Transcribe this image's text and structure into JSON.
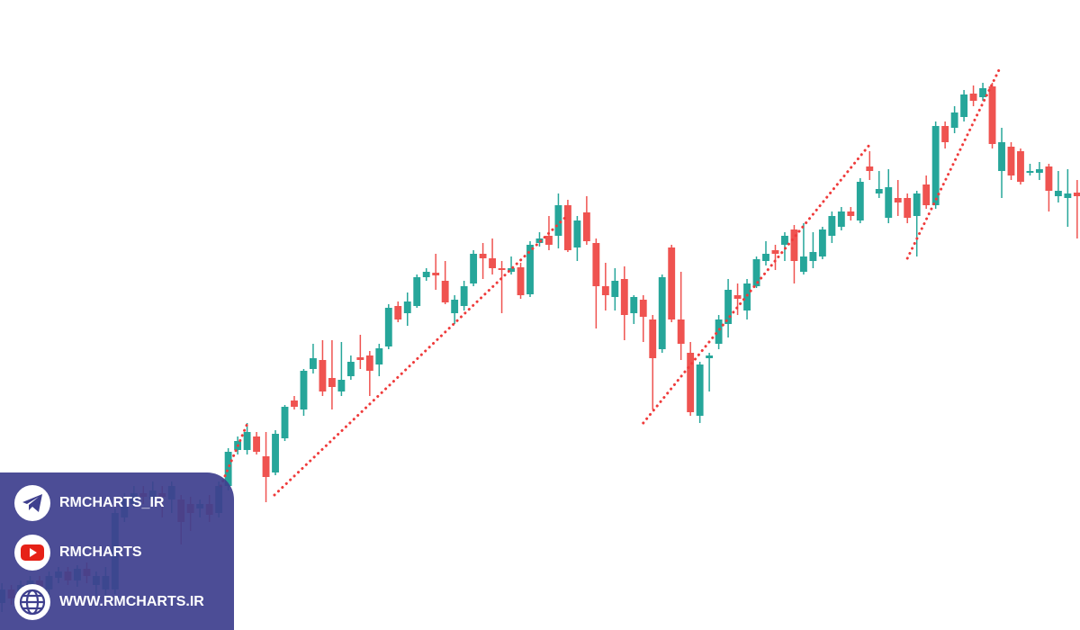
{
  "chart_data": {
    "type": "candlestick",
    "up_color": "#26a69a",
    "down_color": "#ef5350",
    "trend_color": "#ef3b3b",
    "xlim": [
      -0.2,
      114.3
    ],
    "ylim": [
      0,
      700
    ],
    "open": [
      30,
      45,
      32,
      48,
      55,
      45,
      58,
      65,
      55,
      68,
      50,
      45,
      45,
      125,
      140,
      152,
      145,
      152,
      145,
      145,
      140,
      135,
      140,
      130,
      160,
      200,
      200,
      215,
      193,
      175,
      213,
      255,
      245,
      290,
      300,
      280,
      265,
      282,
      303,
      305,
      295,
      315,
      360,
      352,
      360,
      392,
      397,
      388,
      352,
      360,
      385,
      418,
      413,
      402,
      398,
      403,
      373,
      430,
      438,
      438,
      472,
      425,
      464,
      430,
      382,
      370,
      390,
      352,
      367,
      345,
      312,
      425,
      345,
      308,
      238,
      302,
      318,
      340,
      372,
      355,
      382,
      410,
      422,
      428,
      445,
      398,
      410,
      415,
      438,
      448,
      465,
      455,
      515,
      485,
      458,
      480,
      480,
      460,
      495,
      472,
      560,
      558,
      570,
      596,
      592,
      604,
      510,
      537,
      532,
      508,
      508,
      515,
      482,
      480,
      486
    ],
    "high": [
      52,
      50,
      55,
      60,
      60,
      65,
      70,
      70,
      72,
      75,
      65,
      70,
      135,
      152,
      160,
      160,
      165,
      160,
      165,
      150,
      148,
      145,
      150,
      165,
      202,
      215,
      230,
      220,
      220,
      222,
      250,
      260,
      290,
      318,
      322,
      322,
      320,
      305,
      328,
      310,
      318,
      362,
      365,
      375,
      395,
      402,
      418,
      410,
      372,
      388,
      422,
      430,
      435,
      410,
      415,
      408,
      432,
      442,
      460,
      485,
      478,
      460,
      482,
      435,
      408,
      402,
      404,
      372,
      372,
      350,
      395,
      428,
      398,
      320,
      298,
      308,
      350,
      390,
      385,
      390,
      415,
      432,
      428,
      442,
      450,
      452,
      442,
      448,
      465,
      470,
      470,
      502,
      532,
      510,
      512,
      500,
      485,
      488,
      505,
      565,
      565,
      582,
      600,
      605,
      608,
      608,
      558,
      542,
      535,
      518,
      520,
      518,
      510,
      512,
      500
    ],
    "low": [
      20,
      28,
      25,
      40,
      38,
      40,
      52,
      50,
      48,
      52,
      38,
      35,
      40,
      120,
      135,
      140,
      140,
      125,
      130,
      95,
      110,
      125,
      120,
      125,
      155,
      195,
      195,
      195,
      142,
      172,
      210,
      245,
      238,
      285,
      260,
      245,
      260,
      278,
      290,
      260,
      282,
      312,
      342,
      338,
      358,
      388,
      378,
      362,
      340,
      355,
      382,
      390,
      395,
      352,
      395,
      368,
      370,
      426,
      422,
      424,
      420,
      410,
      428,
      335,
      355,
      355,
      322,
      340,
      320,
      245,
      308,
      342,
      300,
      238,
      230,
      265,
      312,
      325,
      350,
      345,
      380,
      405,
      400,
      410,
      385,
      395,
      402,
      412,
      430,
      444,
      455,
      452,
      500,
      480,
      452,
      460,
      452,
      415,
      468,
      468,
      535,
      552,
      565,
      582,
      588,
      535,
      480,
      500,
      495,
      505,
      500,
      465,
      475,
      448,
      435
    ],
    "close": [
      45,
      35,
      50,
      55,
      45,
      60,
      65,
      55,
      68,
      60,
      60,
      60,
      130,
      145,
      152,
      148,
      155,
      148,
      160,
      120,
      130,
      140,
      128,
      160,
      198,
      210,
      220,
      198,
      170,
      218,
      248,
      248,
      288,
      302,
      265,
      270,
      278,
      298,
      300,
      288,
      313,
      358,
      345,
      365,
      392,
      398,
      394,
      364,
      367,
      382,
      418,
      413,
      402,
      400,
      402,
      372,
      428,
      435,
      428,
      472,
      422,
      455,
      432,
      382,
      372,
      388,
      350,
      370,
      348,
      302,
      392,
      345,
      318,
      242,
      295,
      305,
      345,
      378,
      368,
      385,
      412,
      418,
      418,
      438,
      410,
      415,
      420,
      445,
      460,
      465,
      460,
      498,
      510,
      490,
      492,
      475,
      458,
      485,
      472,
      560,
      542,
      575,
      595,
      588,
      602,
      540,
      542,
      505,
      498,
      510,
      512,
      488,
      488,
      485,
      482
    ],
    "trendlines": [
      {
        "x": [
          23.2,
          26.05
        ],
        "y": [
          160,
          230
        ]
      },
      {
        "x": [
          28.9,
          59.9
        ],
        "y": [
          150,
          460
        ]
      },
      {
        "x": [
          68.0,
          91.9
        ],
        "y": [
          230,
          538
        ]
      },
      {
        "x": [
          96.0,
          105.7
        ],
        "y": [
          413,
          622
        ]
      }
    ]
  },
  "social": [
    "RMCHARTS_IR",
    "RMCHARTS",
    "WWW.RMCHARTS.IR"
  ]
}
